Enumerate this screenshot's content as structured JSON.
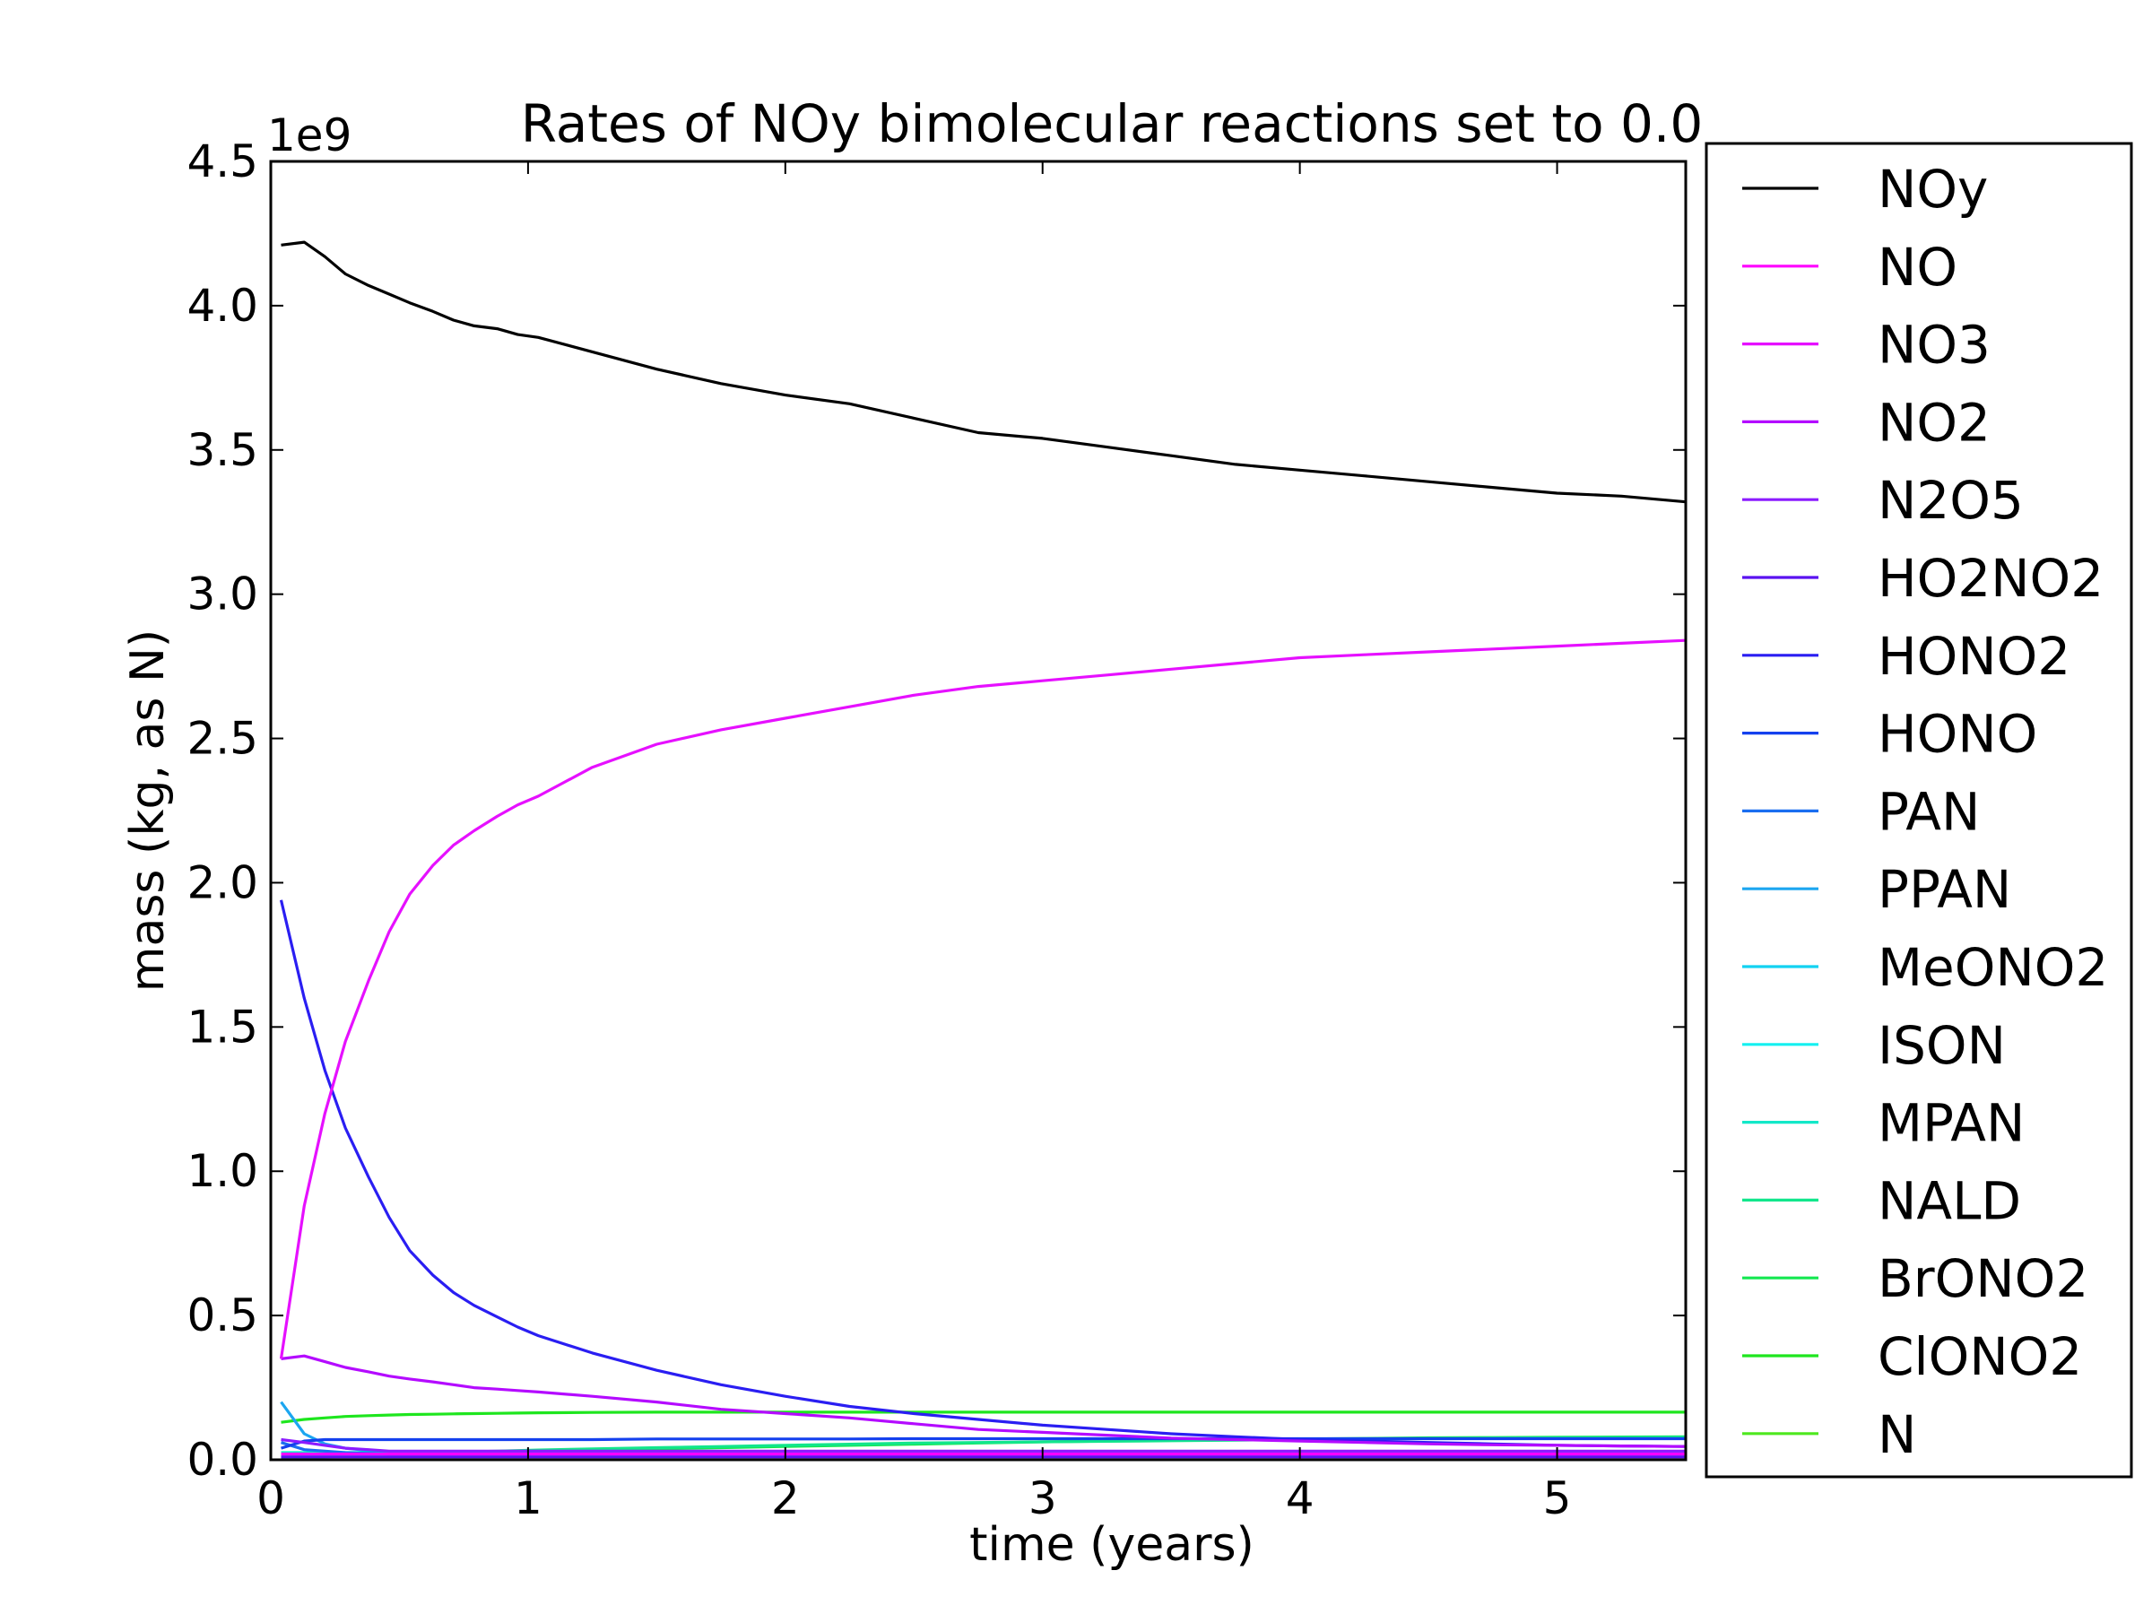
{
  "chart_data": {
    "type": "line",
    "title": "Rates of NOy bimolecular reactions set to 0.0",
    "xlabel": "time (years)",
    "ylabel": "mass (kg, as N)",
    "y_offset_label": "1e9",
    "xlim": [
      0,
      5.5
    ],
    "ylim": [
      0,
      4.5
    ],
    "xticks": [
      "0",
      "1",
      "2",
      "3",
      "4",
      "5"
    ],
    "yticks": [
      "0.0",
      "0.5",
      "1.0",
      "1.5",
      "2.0",
      "2.5",
      "3.0",
      "3.5",
      "4.0",
      "4.5"
    ],
    "grid": false,
    "legend_position": "right",
    "x": [
      0.04,
      0.13,
      0.21,
      0.29,
      0.38,
      0.46,
      0.54,
      0.63,
      0.71,
      0.79,
      0.88,
      0.96,
      1.04,
      1.25,
      1.5,
      1.75,
      2.0,
      2.25,
      2.5,
      2.75,
      3.0,
      3.25,
      3.5,
      3.75,
      4.0,
      4.25,
      4.5,
      4.75,
      5.0,
      5.25,
      5.5
    ],
    "series": [
      {
        "name": "NOy",
        "color": "#000000",
        "values": [
          4.21,
          4.22,
          4.17,
          4.11,
          4.07,
          4.04,
          4.01,
          3.98,
          3.95,
          3.93,
          3.92,
          3.9,
          3.89,
          3.84,
          3.78,
          3.73,
          3.69,
          3.66,
          3.61,
          3.56,
          3.54,
          3.51,
          3.48,
          3.45,
          3.43,
          3.41,
          3.39,
          3.37,
          3.35,
          3.34,
          3.32
        ]
      },
      {
        "name": "NO",
        "color": "#ff00ff",
        "values": [
          0.02,
          0.02,
          0.02,
          0.02,
          0.02,
          0.02,
          0.02,
          0.02,
          0.02,
          0.02,
          0.02,
          0.02,
          0.02,
          0.02,
          0.02,
          0.02,
          0.02,
          0.02,
          0.02,
          0.02,
          0.02,
          0.02,
          0.02,
          0.02,
          0.02,
          0.02,
          0.02,
          0.02,
          0.02,
          0.02,
          0.02
        ]
      },
      {
        "name": "NO3",
        "color": "#e610ff",
        "values": [
          0.35,
          0.88,
          1.2,
          1.45,
          1.66,
          1.83,
          1.96,
          2.06,
          2.13,
          2.18,
          2.23,
          2.27,
          2.3,
          2.4,
          2.48,
          2.53,
          2.57,
          2.61,
          2.65,
          2.68,
          2.7,
          2.72,
          2.74,
          2.76,
          2.78,
          2.79,
          2.8,
          2.81,
          2.82,
          2.83,
          2.84
        ]
      },
      {
        "name": "NO2",
        "color": "#b40bff",
        "values": [
          0.35,
          0.36,
          0.34,
          0.32,
          0.305,
          0.29,
          0.28,
          0.27,
          0.26,
          0.25,
          0.245,
          0.24,
          0.235,
          0.22,
          0.2,
          0.175,
          0.16,
          0.145,
          0.125,
          0.105,
          0.095,
          0.085,
          0.075,
          0.07,
          0.065,
          0.06,
          0.055,
          0.052,
          0.05,
          0.048,
          0.046
        ]
      },
      {
        "name": "N2O5",
        "color": "#8c1bff",
        "values": [
          0.07,
          0.06,
          0.05,
          0.04,
          0.035,
          0.03,
          0.03,
          0.03,
          0.03,
          0.03,
          0.03,
          0.03,
          0.03,
          0.03,
          0.03,
          0.03,
          0.03,
          0.03,
          0.03,
          0.03,
          0.03,
          0.03,
          0.03,
          0.03,
          0.03,
          0.03,
          0.03,
          0.03,
          0.03,
          0.03,
          0.03
        ]
      },
      {
        "name": "HO2NO2",
        "color": "#5a12f0",
        "values": [
          0.01,
          0.01,
          0.01,
          0.01,
          0.01,
          0.01,
          0.01,
          0.01,
          0.01,
          0.01,
          0.01,
          0.01,
          0.01,
          0.01,
          0.01,
          0.01,
          0.01,
          0.01,
          0.01,
          0.01,
          0.01,
          0.01,
          0.01,
          0.01,
          0.01,
          0.01,
          0.01,
          0.01,
          0.01,
          0.01,
          0.01
        ]
      },
      {
        "name": "HONO2",
        "color": "#2a1ef2",
        "values": [
          1.94,
          1.6,
          1.35,
          1.15,
          0.98,
          0.84,
          0.725,
          0.64,
          0.58,
          0.535,
          0.495,
          0.46,
          0.43,
          0.37,
          0.31,
          0.26,
          0.22,
          0.185,
          0.16,
          0.14,
          0.12,
          0.105,
          0.09,
          0.08,
          0.07,
          0.065,
          0.06,
          0.055,
          0.05,
          0.048,
          0.046
        ]
      },
      {
        "name": "HONO",
        "color": "#1440ee",
        "values": [
          0.04,
          0.065,
          0.07,
          0.07,
          0.07,
          0.07,
          0.07,
          0.07,
          0.07,
          0.07,
          0.07,
          0.07,
          0.07,
          0.07,
          0.072,
          0.072,
          0.072,
          0.072,
          0.073,
          0.073,
          0.073,
          0.073,
          0.073,
          0.073,
          0.073,
          0.073,
          0.073,
          0.073,
          0.073,
          0.073,
          0.073
        ]
      },
      {
        "name": "PAN",
        "color": "#1a6ef0",
        "values": [
          0.06,
          0.035,
          0.03,
          0.025,
          0.022,
          0.02,
          0.02,
          0.02,
          0.02,
          0.02,
          0.02,
          0.02,
          0.02,
          0.02,
          0.02,
          0.02,
          0.02,
          0.02,
          0.02,
          0.02,
          0.02,
          0.02,
          0.02,
          0.02,
          0.02,
          0.02,
          0.02,
          0.02,
          0.02,
          0.02,
          0.02
        ]
      },
      {
        "name": "PPAN",
        "color": "#1ca6f0",
        "values": [
          0.2,
          0.09,
          0.055,
          0.04,
          0.032,
          0.028,
          0.025,
          0.024,
          0.023,
          0.022,
          0.022,
          0.022,
          0.022,
          0.022,
          0.022,
          0.022,
          0.022,
          0.022,
          0.022,
          0.022,
          0.022,
          0.022,
          0.022,
          0.022,
          0.022,
          0.022,
          0.022,
          0.022,
          0.022,
          0.022,
          0.022
        ]
      },
      {
        "name": "MeONO2",
        "color": "#12d2f2",
        "values": [
          0.02,
          0.02,
          0.02,
          0.02,
          0.02,
          0.02,
          0.02,
          0.02,
          0.02,
          0.02,
          0.02,
          0.02,
          0.02,
          0.02,
          0.02,
          0.02,
          0.02,
          0.02,
          0.02,
          0.02,
          0.02,
          0.02,
          0.02,
          0.02,
          0.02,
          0.02,
          0.02,
          0.02,
          0.02,
          0.02,
          0.02
        ]
      },
      {
        "name": "ISON",
        "color": "#14f0f0",
        "values": [
          0.015,
          0.015,
          0.015,
          0.015,
          0.015,
          0.015,
          0.015,
          0.015,
          0.015,
          0.015,
          0.015,
          0.015,
          0.015,
          0.015,
          0.015,
          0.015,
          0.015,
          0.015,
          0.015,
          0.015,
          0.015,
          0.015,
          0.015,
          0.015,
          0.015,
          0.015,
          0.015,
          0.015,
          0.015,
          0.015,
          0.015
        ]
      },
      {
        "name": "MPAN",
        "color": "#12e8c8",
        "values": [
          0.025,
          0.025,
          0.025,
          0.025,
          0.025,
          0.025,
          0.025,
          0.025,
          0.025,
          0.025,
          0.025,
          0.025,
          0.025,
          0.025,
          0.025,
          0.025,
          0.025,
          0.025,
          0.025,
          0.025,
          0.025,
          0.025,
          0.025,
          0.025,
          0.025,
          0.025,
          0.025,
          0.025,
          0.025,
          0.025,
          0.025
        ]
      },
      {
        "name": "NALD",
        "color": "#12e68c",
        "values": [
          0.01,
          0.012,
          0.014,
          0.016,
          0.018,
          0.02,
          0.022,
          0.024,
          0.026,
          0.028,
          0.03,
          0.032,
          0.034,
          0.038,
          0.042,
          0.046,
          0.05,
          0.054,
          0.058,
          0.06,
          0.062,
          0.064,
          0.066,
          0.068,
          0.07,
          0.072,
          0.074,
          0.075,
          0.076,
          0.077,
          0.078
        ]
      },
      {
        "name": "BrONO2",
        "color": "#14e850",
        "values": [
          0.005,
          0.008,
          0.01,
          0.012,
          0.014,
          0.016,
          0.018,
          0.02,
          0.022,
          0.024,
          0.026,
          0.028,
          0.03,
          0.034,
          0.038,
          0.042,
          0.046,
          0.05,
          0.054,
          0.058,
          0.062,
          0.065,
          0.068,
          0.07,
          0.072,
          0.074,
          0.076,
          0.077,
          0.078,
          0.079,
          0.08
        ]
      },
      {
        "name": "ClONO2",
        "color": "#1ee61e",
        "values": [
          0.13,
          0.14,
          0.145,
          0.15,
          0.153,
          0.155,
          0.157,
          0.158,
          0.159,
          0.16,
          0.161,
          0.162,
          0.163,
          0.164,
          0.165,
          0.165,
          0.165,
          0.165,
          0.165,
          0.165,
          0.165,
          0.165,
          0.165,
          0.165,
          0.165,
          0.165,
          0.165,
          0.165,
          0.165,
          0.165,
          0.165
        ]
      },
      {
        "name": "N",
        "color": "#4ee81e",
        "values": [
          0.0,
          0.0,
          0.0,
          0.0,
          0.0,
          0.0,
          0.0,
          0.0,
          0.0,
          0.0,
          0.0,
          0.0,
          0.0,
          0.0,
          0.0,
          0.0,
          0.0,
          0.0,
          0.0,
          0.0,
          0.0,
          0.0,
          0.0,
          0.0,
          0.0,
          0.0,
          0.0,
          0.0,
          0.0,
          0.0,
          0.0
        ]
      }
    ]
  }
}
